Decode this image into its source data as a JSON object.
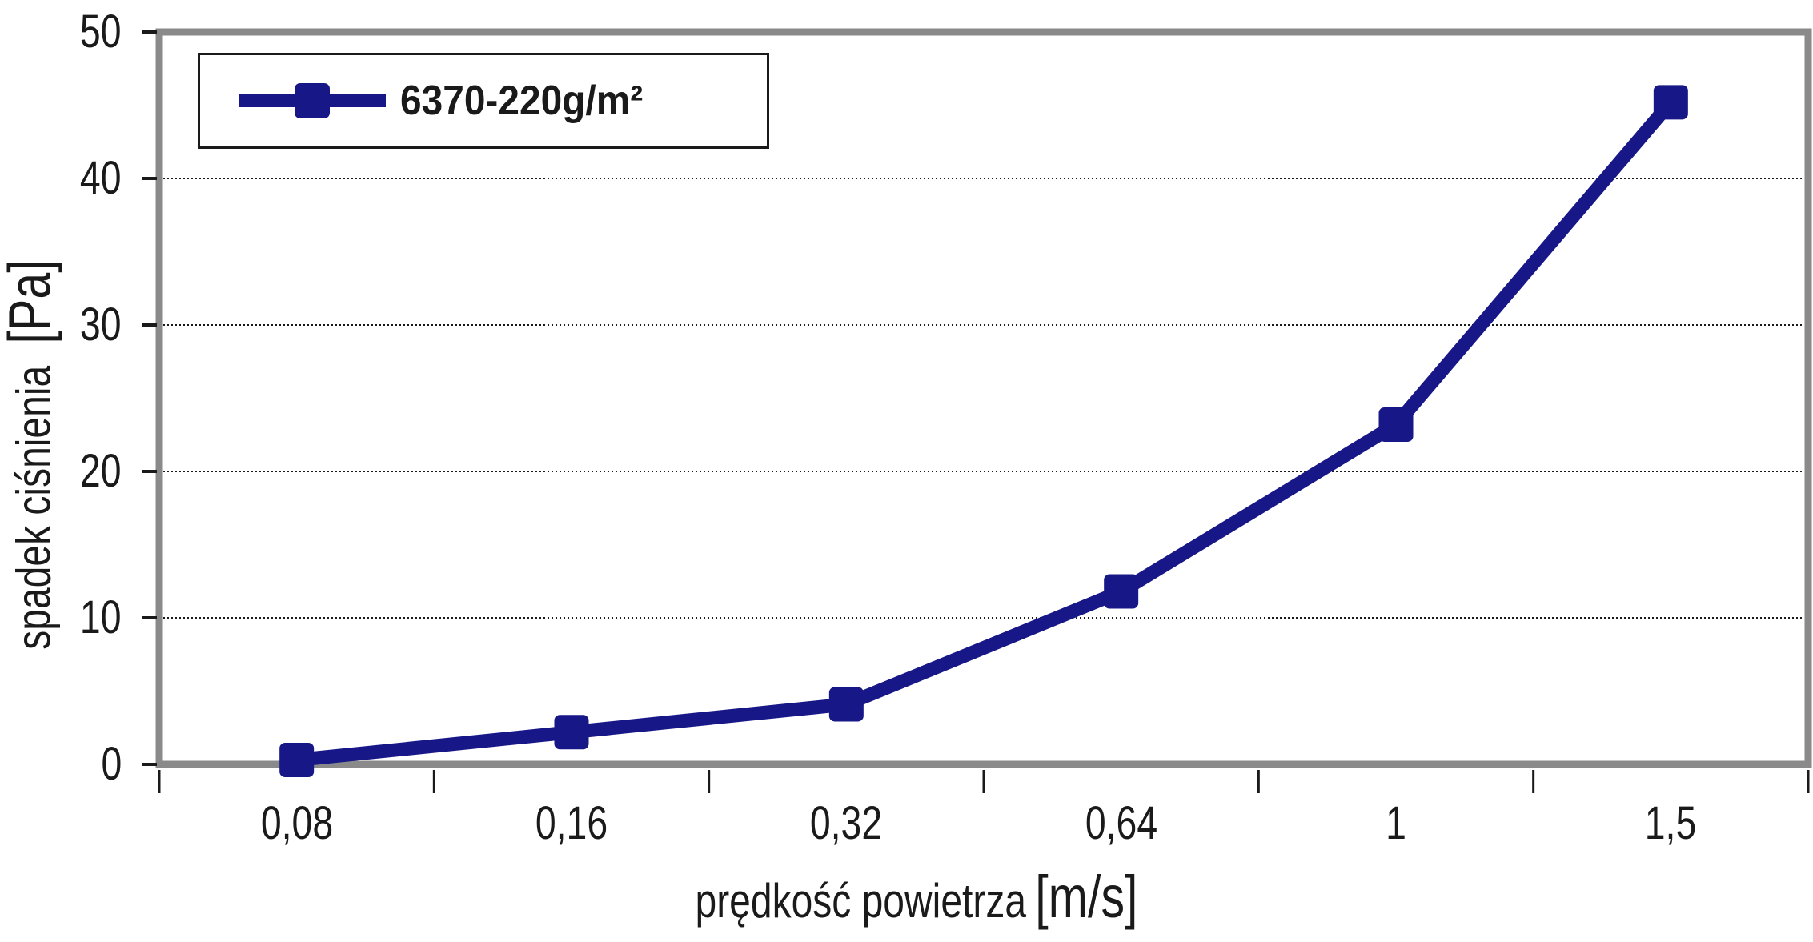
{
  "chart_data": {
    "type": "line",
    "categories": [
      "0,08",
      "0,16",
      "0,32",
      "0,64",
      "1",
      "1,5"
    ],
    "series": [
      {
        "name": "6370-220g/m²",
        "values": [
          0.3,
          2.2,
          4.1,
          11.8,
          23.2,
          45.2
        ],
        "color": "#181788",
        "marker": "square"
      }
    ],
    "xlabel": "prędkość powietrza [m/s]",
    "ylabel": "spadek ciśnienia [Pa]",
    "ylim": [
      0,
      50
    ],
    "y_ticks": [
      0,
      10,
      20,
      30,
      40,
      50
    ],
    "grid": "horizontal-dotted",
    "legend_position": "top-left-inside"
  },
  "legend": {
    "label": "6370-220g/m²"
  },
  "axes": {
    "x_title_main": "prędkość powietrza",
    "x_title_unit": "[m/s]",
    "y_title_main": "spadek ciśnienia",
    "y_title_unit": "[Pa]"
  },
  "colors": {
    "series": "#181788",
    "axis_frame": "#8a8a8a",
    "grid": "#1a1a1a",
    "tick": "#1a1a1a",
    "text": "#1a1a1a",
    "legend_border": "#1a1a1a",
    "background": "#ffffff"
  }
}
